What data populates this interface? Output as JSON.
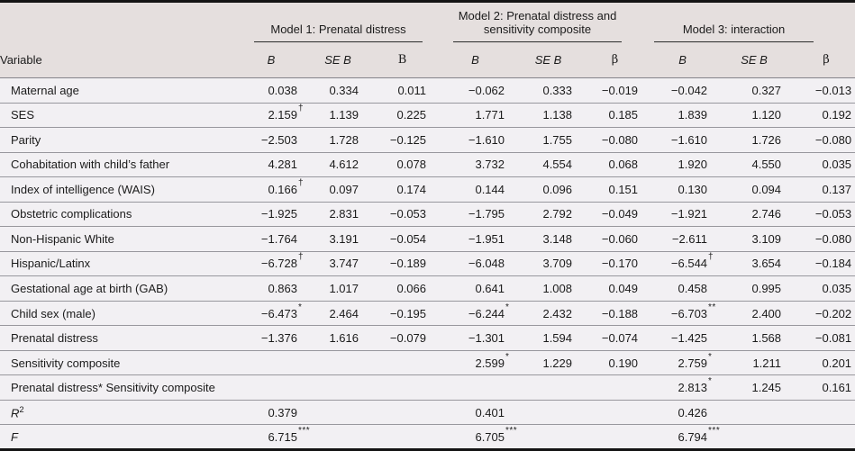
{
  "table": {
    "variable_header": "Variable",
    "model_groups": [
      {
        "label": "Model 1: Prenatal distress"
      },
      {
        "label": "Model 2: Prenatal distress and sensitivity composite"
      },
      {
        "label": "Model 3: interaction"
      }
    ],
    "stat_headers": [
      {
        "label": "B",
        "italic": true,
        "serif": false
      },
      {
        "label": "SE B",
        "italic": true,
        "serif": false
      },
      {
        "label": "B",
        "italic": false,
        "serif": true
      },
      {
        "label": "B",
        "italic": true,
        "serif": false
      },
      {
        "label": "SE B",
        "italic": true,
        "serif": false
      },
      {
        "label": "β",
        "italic": false,
        "serif": true
      },
      {
        "label": "B",
        "italic": true,
        "serif": false
      },
      {
        "label": "SE B",
        "italic": true,
        "serif": false
      },
      {
        "label": "β",
        "italic": false,
        "serif": true
      }
    ],
    "rows": [
      {
        "variable": "Maternal age",
        "cells": [
          {
            "v": "0.038"
          },
          {
            "v": "0.334"
          },
          {
            "v": "0.011"
          },
          {
            "v": "−0.062"
          },
          {
            "v": "0.333"
          },
          {
            "v": "−0.019"
          },
          {
            "v": "−0.042"
          },
          {
            "v": "0.327"
          },
          {
            "v": "−0.013"
          }
        ]
      },
      {
        "variable": "SES",
        "cells": [
          {
            "v": "2.159",
            "sup": "†"
          },
          {
            "v": "1.139"
          },
          {
            "v": "0.225"
          },
          {
            "v": "1.771"
          },
          {
            "v": "1.138"
          },
          {
            "v": "0.185"
          },
          {
            "v": "1.839"
          },
          {
            "v": "1.120"
          },
          {
            "v": "0.192"
          }
        ]
      },
      {
        "variable": "Parity",
        "cells": [
          {
            "v": "−2.503"
          },
          {
            "v": "1.728"
          },
          {
            "v": "−0.125"
          },
          {
            "v": "−1.610"
          },
          {
            "v": "1.755"
          },
          {
            "v": "−0.080"
          },
          {
            "v": "−1.610"
          },
          {
            "v": "1.726"
          },
          {
            "v": "−0.080"
          }
        ]
      },
      {
        "variable": "Cohabitation with child’s father",
        "cells": [
          {
            "v": "4.281"
          },
          {
            "v": "4.612"
          },
          {
            "v": "0.078"
          },
          {
            "v": "3.732"
          },
          {
            "v": "4.554"
          },
          {
            "v": "0.068"
          },
          {
            "v": "1.920"
          },
          {
            "v": "4.550"
          },
          {
            "v": "0.035"
          }
        ]
      },
      {
        "variable": "Index of intelligence (WAIS)",
        "cells": [
          {
            "v": "0.166",
            "sup": "†"
          },
          {
            "v": "0.097"
          },
          {
            "v": "0.174"
          },
          {
            "v": "0.144"
          },
          {
            "v": "0.096"
          },
          {
            "v": "0.151"
          },
          {
            "v": "0.130"
          },
          {
            "v": "0.094"
          },
          {
            "v": "0.137"
          }
        ]
      },
      {
        "variable": "Obstetric complications",
        "cells": [
          {
            "v": "−1.925"
          },
          {
            "v": "2.831"
          },
          {
            "v": "−0.053"
          },
          {
            "v": "−1.795"
          },
          {
            "v": "2.792"
          },
          {
            "v": "−0.049"
          },
          {
            "v": "−1.921"
          },
          {
            "v": "2.746"
          },
          {
            "v": "−0.053"
          }
        ]
      },
      {
        "variable": "Non-Hispanic White",
        "cells": [
          {
            "v": "−1.764"
          },
          {
            "v": "3.191"
          },
          {
            "v": "−0.054"
          },
          {
            "v": "−1.951"
          },
          {
            "v": "3.148"
          },
          {
            "v": "−0.060"
          },
          {
            "v": "−2.611"
          },
          {
            "v": "3.109"
          },
          {
            "v": "−0.080"
          }
        ]
      },
      {
        "variable": "Hispanic/Latinx",
        "cells": [
          {
            "v": "−6.728",
            "sup": "†"
          },
          {
            "v": "3.747"
          },
          {
            "v": "−0.189"
          },
          {
            "v": "−6.048"
          },
          {
            "v": "3.709"
          },
          {
            "v": "−0.170"
          },
          {
            "v": "−6.544",
            "sup": "†"
          },
          {
            "v": "3.654"
          },
          {
            "v": "−0.184"
          }
        ]
      },
      {
        "variable": "Gestational age at birth (GAB)",
        "cells": [
          {
            "v": "0.863"
          },
          {
            "v": "1.017"
          },
          {
            "v": "0.066"
          },
          {
            "v": "0.641"
          },
          {
            "v": "1.008"
          },
          {
            "v": "0.049"
          },
          {
            "v": "0.458"
          },
          {
            "v": "0.995"
          },
          {
            "v": "0.035"
          }
        ]
      },
      {
        "variable": "Child sex (male)",
        "cells": [
          {
            "v": "−6.473",
            "sup": "*"
          },
          {
            "v": "2.464"
          },
          {
            "v": "−0.195"
          },
          {
            "v": "−6.244",
            "sup": "*"
          },
          {
            "v": "2.432"
          },
          {
            "v": "−0.188"
          },
          {
            "v": "−6.703",
            "sup": "**"
          },
          {
            "v": "2.400"
          },
          {
            "v": "−0.202"
          }
        ]
      },
      {
        "variable": "Prenatal distress",
        "cells": [
          {
            "v": "−1.376"
          },
          {
            "v": "1.616"
          },
          {
            "v": "−0.079"
          },
          {
            "v": "−1.301"
          },
          {
            "v": "1.594"
          },
          {
            "v": "−0.074"
          },
          {
            "v": "−1.425"
          },
          {
            "v": "1.568"
          },
          {
            "v": "−0.081"
          }
        ]
      },
      {
        "variable": "Sensitivity composite",
        "cells": [
          null,
          null,
          null,
          {
            "v": "2.599",
            "sup": "*"
          },
          {
            "v": "1.229"
          },
          {
            "v": "0.190"
          },
          {
            "v": "2.759",
            "sup": "*"
          },
          {
            "v": "1.211"
          },
          {
            "v": "0.201"
          }
        ]
      },
      {
        "variable": "Prenatal distress* Sensitivity composite",
        "cells": [
          null,
          null,
          null,
          null,
          null,
          null,
          {
            "v": "2.813",
            "sup": "*"
          },
          {
            "v": "1.245"
          },
          {
            "v": "0.161"
          }
        ]
      },
      {
        "variable": "R",
        "var_sup": "2",
        "var_italic": true,
        "cells": [
          {
            "v": "0.379"
          },
          null,
          null,
          {
            "v": "0.401"
          },
          null,
          null,
          {
            "v": "0.426"
          },
          null,
          null
        ]
      },
      {
        "variable": "F",
        "var_italic": true,
        "cells": [
          {
            "v": "6.715",
            "sup": "***"
          },
          null,
          null,
          {
            "v": "6.705",
            "sup": "***"
          },
          null,
          null,
          {
            "v": "6.794",
            "sup": "***"
          },
          null,
          null
        ]
      }
    ]
  }
}
